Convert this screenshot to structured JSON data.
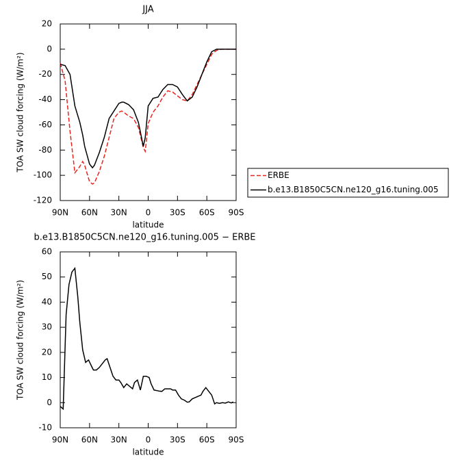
{
  "chart_data": [
    {
      "type": "line",
      "title": "JJA",
      "xlabel": "latitude",
      "ylabel": "TOA SW cloud forcing (W/m²)",
      "x": [
        90,
        85,
        80,
        75,
        70,
        67,
        65,
        60,
        57,
        55,
        50,
        45,
        40,
        35,
        30,
        27,
        25,
        20,
        15,
        10,
        5,
        3,
        0,
        -5,
        -10,
        -15,
        -20,
        -25,
        -30,
        -35,
        -40,
        -45,
        -50,
        -55,
        -60,
        -65,
        -70,
        -75,
        -80,
        -85,
        -90
      ],
      "series": [
        {
          "name": "ERBE",
          "color": "#e8231f",
          "dash": "dashed",
          "values": [
            -11,
            -25,
            -65,
            -98,
            -93,
            -89,
            -92,
            -105,
            -107,
            -106,
            -97,
            -85,
            -70,
            -55,
            -50,
            -49,
            -50,
            -53,
            -55,
            -62,
            -78,
            -81,
            -59,
            -50,
            -45,
            -38,
            -33,
            -34,
            -37,
            -40,
            -41,
            -36,
            -28,
            -20,
            -12,
            -4,
            -1,
            0,
            0,
            0,
            0
          ]
        },
        {
          "name": "b.e13.B1850C5CN.ne120_g16.tuning.005",
          "color": "#000000",
          "dash": "solid",
          "values": [
            -12,
            -13,
            -20,
            -45,
            -58,
            -68,
            -77,
            -91,
            -94,
            -92,
            -82,
            -70,
            -55,
            -49,
            -43,
            -42,
            -42,
            -44,
            -48,
            -58,
            -77,
            -70,
            -45,
            -39,
            -38,
            -32,
            -28,
            -28,
            -30,
            -36,
            -41,
            -38,
            -30,
            -20,
            -10,
            -2,
            0,
            0,
            0,
            0,
            0
          ]
        }
      ],
      "xlim": [
        90,
        -90
      ],
      "xticks": [
        {
          "value": 90,
          "label": "90N"
        },
        {
          "value": 60,
          "label": "60N"
        },
        {
          "value": 30,
          "label": "30N"
        },
        0,
        {
          "value": -30,
          "label": "30S"
        },
        {
          "value": -60,
          "label": "60S"
        },
        {
          "value": -90,
          "label": "90S"
        }
      ],
      "ylim": [
        -120,
        20
      ],
      "yticks": [
        -120,
        -100,
        -80,
        -60,
        -40,
        -20,
        0,
        20
      ],
      "legend": "right"
    },
    {
      "type": "line",
      "title": "b.e13.B1850C5CN.ne120_g16.tuning.005 − ERBE",
      "xlabel": "latitude",
      "ylabel": "TOA SW cloud forcing (W/m²)",
      "x": [
        90,
        87,
        84,
        81,
        78,
        75,
        72,
        70,
        67,
        64,
        61,
        58,
        56,
        53,
        50,
        47,
        44,
        42,
        39,
        36,
        33,
        30,
        28,
        25,
        22,
        19,
        16,
        14,
        11,
        8,
        5,
        2,
        -1,
        -3,
        -6,
        -9,
        -11,
        -14,
        -17,
        -20,
        -23,
        -25,
        -28,
        -31,
        -34,
        -37,
        -40,
        -42,
        -45,
        -48,
        -51,
        -54,
        -56,
        -59,
        -62,
        -65,
        -68,
        -70,
        -73,
        -76,
        -79,
        -82,
        -85,
        -87
      ],
      "series": [
        {
          "color": "#000000",
          "dash": "solid",
          "values": [
            -1.5,
            -2.5,
            35,
            47,
            52,
            53.5,
            42,
            32,
            21,
            16,
            17,
            14.5,
            13,
            13,
            14,
            15.5,
            17,
            17.5,
            14,
            10.5,
            9,
            9,
            8,
            6,
            7.5,
            6.5,
            5.5,
            8,
            9,
            5,
            10.5,
            10.5,
            10,
            7.5,
            5,
            4.8,
            4.6,
            4.5,
            5.5,
            5.5,
            5.5,
            5,
            5,
            3,
            1.5,
            1,
            0.2,
            0.3,
            1.5,
            2,
            2.5,
            3,
            4.5,
            6,
            4.5,
            3,
            -0.5,
            0,
            -0.3,
            0,
            -0.2,
            0.3,
            -0.1,
            0.3
          ]
        }
      ],
      "xlim": [
        90,
        -90
      ],
      "xticks": [
        {
          "value": 90,
          "label": "90N"
        },
        {
          "value": 60,
          "label": "60N"
        },
        {
          "value": 30,
          "label": "30N"
        },
        0,
        {
          "value": -30,
          "label": "30S"
        },
        {
          "value": -60,
          "label": "60S"
        },
        {
          "value": -90,
          "label": "90S"
        }
      ],
      "ylim": [
        -10,
        60
      ],
      "yticks": [
        -10,
        0,
        10,
        20,
        30,
        40,
        50,
        60
      ]
    }
  ]
}
